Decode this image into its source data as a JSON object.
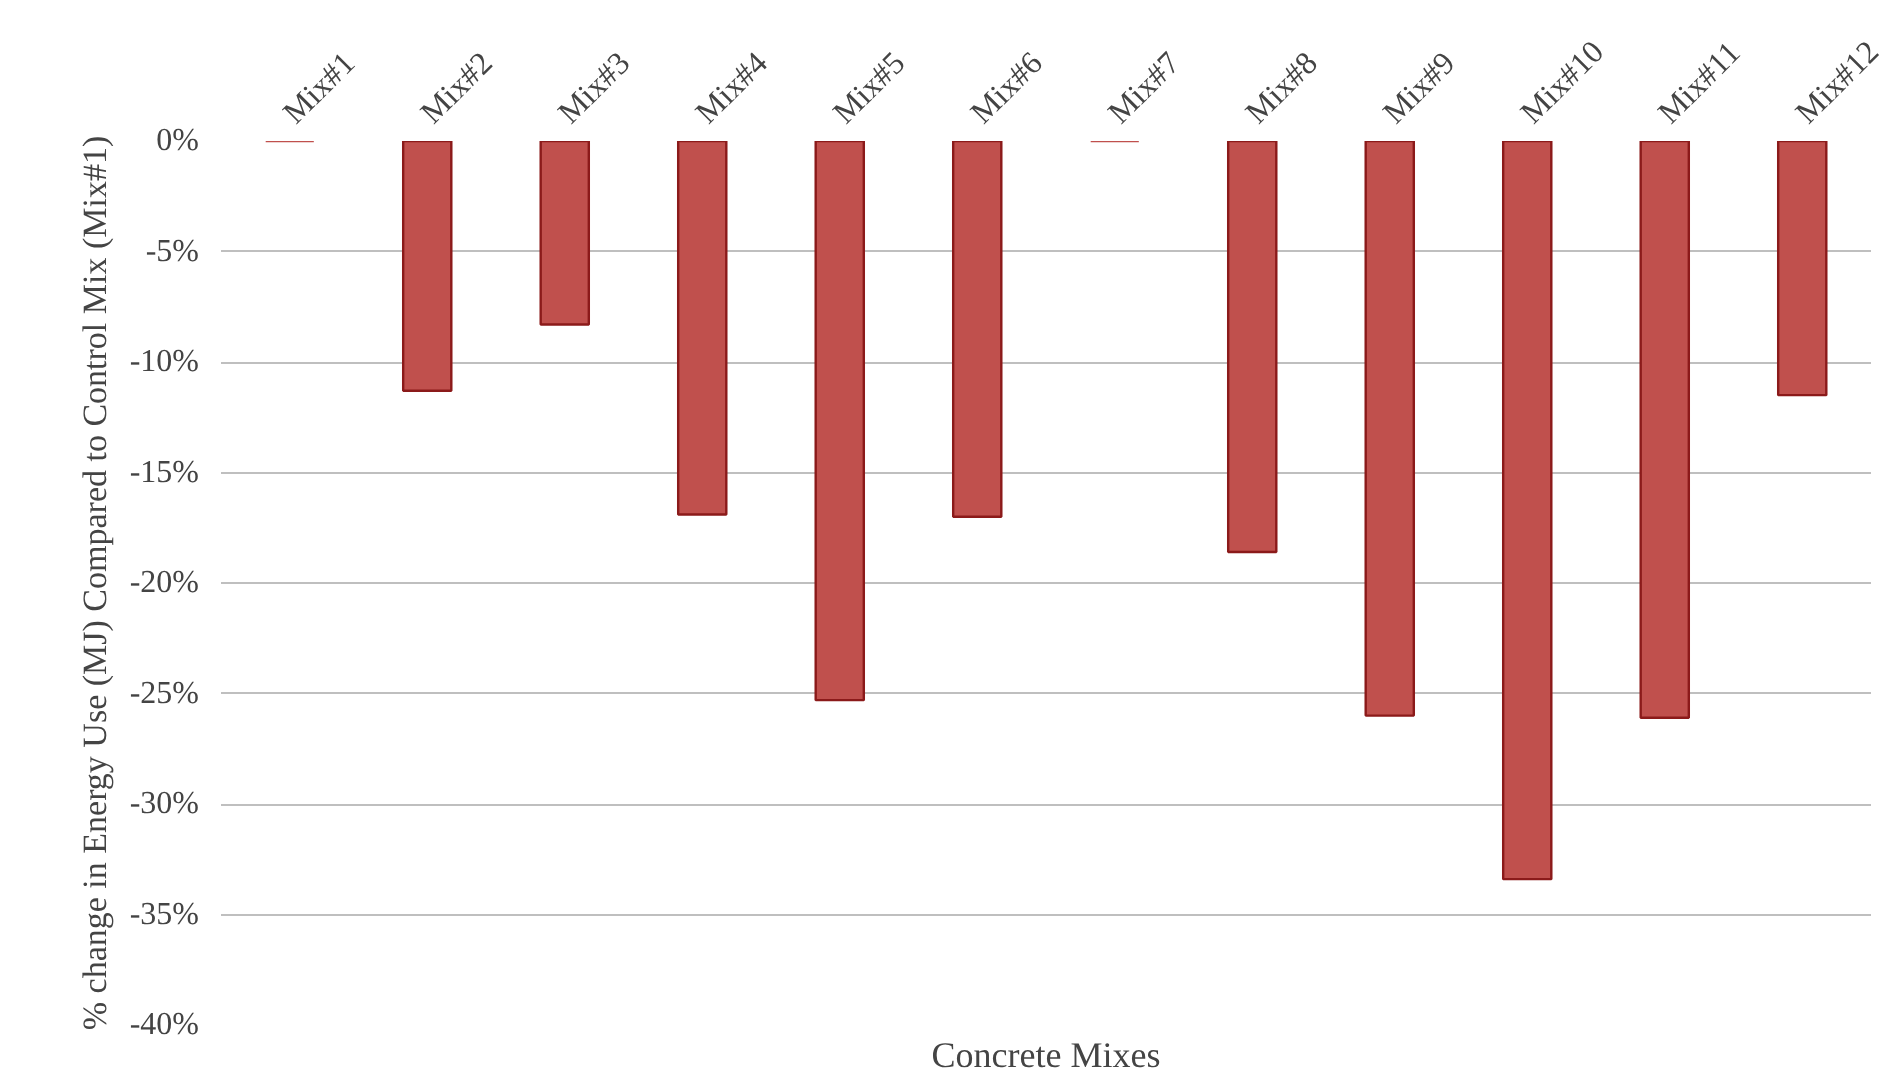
{
  "chart_data": {
    "type": "bar",
    "xlabel": "Concrete Mixes",
    "ylabel": "% change in Energy Use (MJ) Compared to Control Mix (Mix#1)",
    "categories": [
      "Mix#1",
      "Mix#2",
      "Mix#3",
      "Mix#4",
      "Mix#5",
      "Mix#6",
      "Mix#7",
      "Mix#8",
      "Mix#9",
      "Mix#10",
      "Mix#11",
      "Mix#12"
    ],
    "values": [
      0,
      -11.3,
      -8.3,
      -16.9,
      -25.3,
      -17.0,
      0,
      -18.6,
      -26.0,
      -33.4,
      -26.1,
      -11.5
    ],
    "color": "#c0504d",
    "ylim": [
      -40,
      0
    ],
    "yticks": [
      {
        "value": 0,
        "label": "0%"
      },
      {
        "value": -5,
        "label": "-5%"
      },
      {
        "value": -10,
        "label": "-10%"
      },
      {
        "value": -15,
        "label": "-15%"
      },
      {
        "value": -20,
        "label": "-20%"
      },
      {
        "value": -25,
        "label": "-25%"
      },
      {
        "value": -30,
        "label": "-30%"
      },
      {
        "value": -35,
        "label": "-35%"
      },
      {
        "value": -40,
        "label": "-40%"
      }
    ],
    "grid": "y"
  }
}
